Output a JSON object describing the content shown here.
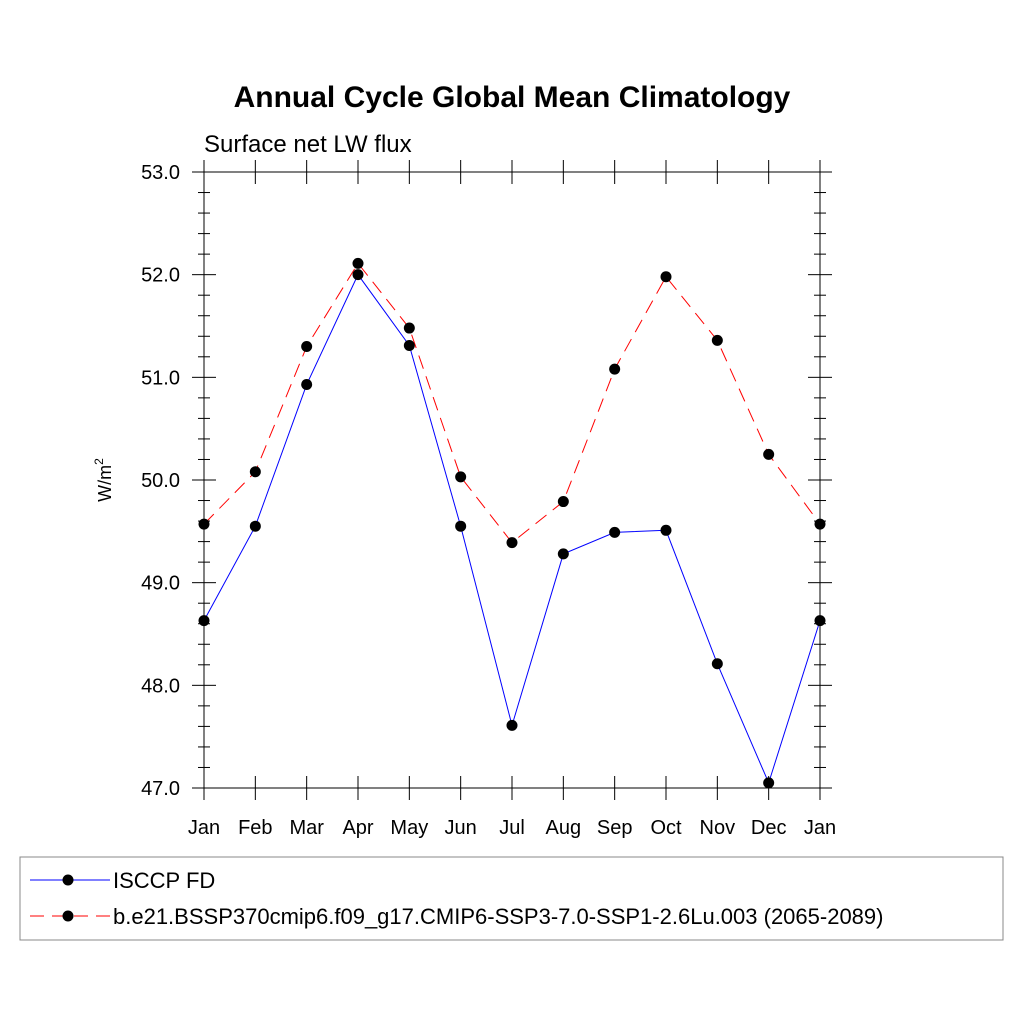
{
  "chart_data": {
    "type": "line",
    "title": "Annual Cycle Global Mean Climatology",
    "subtitle": "Surface net LW flux",
    "ylabel": "W/m",
    "ylabel_superscript": "2",
    "xlabel": "",
    "categories": [
      "Jan",
      "Feb",
      "Mar",
      "Apr",
      "May",
      "Jun",
      "Jul",
      "Aug",
      "Sep",
      "Oct",
      "Nov",
      "Dec",
      "Jan"
    ],
    "ylim": [
      47.0,
      53.0
    ],
    "yticks": [
      "47.0",
      "48.0",
      "49.0",
      "50.0",
      "51.0",
      "52.0",
      "53.0"
    ],
    "grid": false,
    "legend_position": "bottom",
    "series": [
      {
        "name": "ISCCP FD",
        "color": "#0000ff",
        "dash": "solid",
        "values": [
          48.63,
          49.55,
          50.93,
          52.0,
          51.31,
          49.55,
          47.61,
          49.28,
          49.49,
          49.51,
          48.21,
          47.05,
          48.63
        ]
      },
      {
        "name": "b.e21.BSSP370cmip6.f09_g17.CMIP6-SSP3-7.0-SSP1-2.6Lu.003 (2065-2089)",
        "color": "#ff0000",
        "dash": "dashed",
        "values": [
          49.57,
          50.08,
          51.3,
          52.11,
          51.48,
          50.03,
          49.39,
          49.79,
          51.08,
          51.98,
          51.36,
          50.25,
          49.57
        ]
      }
    ]
  }
}
